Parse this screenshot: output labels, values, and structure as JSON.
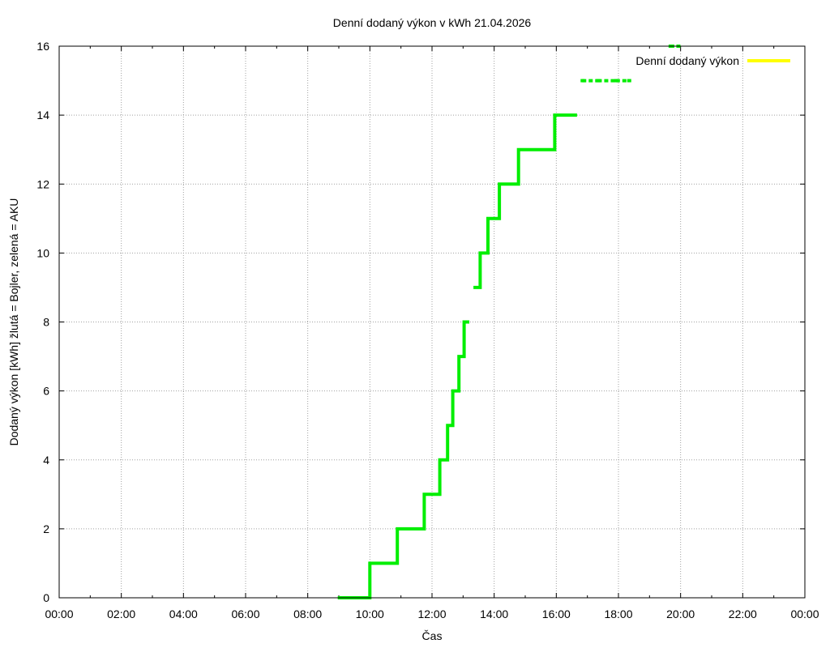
{
  "chart_data": {
    "type": "line",
    "title": "Denní dodaný výkon v kWh 21.04.2026",
    "xlabel": "Čas",
    "ylabel": "Dodaný výkon [kWh]  žlutá = Bojler, zelená = AKU",
    "x_ticks": [
      "00:00",
      "02:00",
      "04:00",
      "06:00",
      "08:00",
      "10:00",
      "12:00",
      "14:00",
      "16:00",
      "18:00",
      "20:00",
      "22:00",
      "00:00"
    ],
    "xlim": [
      "00:00",
      "24:00"
    ],
    "y_ticks": [
      0,
      2,
      4,
      6,
      8,
      10,
      12,
      14,
      16
    ],
    "ylim": [
      0,
      16
    ],
    "grid": true,
    "legend": {
      "position": "top-right",
      "entries": [
        {
          "label": "Denní dodaný výkon",
          "color": "#ffff00"
        }
      ]
    },
    "series": [
      {
        "color": "#00ee00",
        "style": "step",
        "points": [
          [
            "08:58",
            0
          ],
          [
            "09:20",
            0
          ],
          [
            "10:00",
            0
          ],
          [
            "10:00",
            1
          ],
          [
            "10:53",
            1
          ],
          [
            "10:53",
            2
          ],
          [
            "11:45",
            2
          ],
          [
            "11:45",
            3
          ],
          [
            "12:15",
            3
          ],
          [
            "12:15",
            4
          ],
          [
            "12:30",
            4
          ],
          [
            "12:30",
            5
          ],
          [
            "12:40",
            5
          ],
          [
            "12:40",
            6
          ],
          [
            "12:52",
            6
          ],
          [
            "12:52",
            7
          ],
          [
            "13:02",
            7
          ],
          [
            "13:02",
            8
          ],
          [
            "13:12",
            8
          ]
        ]
      },
      {
        "color": "#00ee00",
        "style": "step",
        "points": [
          [
            "13:20",
            9
          ],
          [
            "13:33",
            9
          ],
          [
            "13:33",
            10
          ],
          [
            "13:48",
            10
          ],
          [
            "13:48",
            11
          ],
          [
            "14:10",
            11
          ],
          [
            "14:10",
            12
          ],
          [
            "14:47",
            12
          ],
          [
            "14:47",
            13
          ],
          [
            "15:57",
            13
          ],
          [
            "15:57",
            14
          ],
          [
            "16:40",
            14
          ]
        ]
      },
      {
        "color": "#00ee00",
        "style": "dots",
        "points": [
          [
            "16:50",
            15
          ],
          [
            "17:20",
            15
          ],
          [
            "17:55",
            15
          ],
          [
            "18:20",
            15
          ]
        ]
      },
      {
        "color": "#00ee00",
        "style": "dots",
        "points": [
          [
            "19:40",
            16
          ],
          [
            "19:55",
            16
          ]
        ]
      }
    ]
  }
}
